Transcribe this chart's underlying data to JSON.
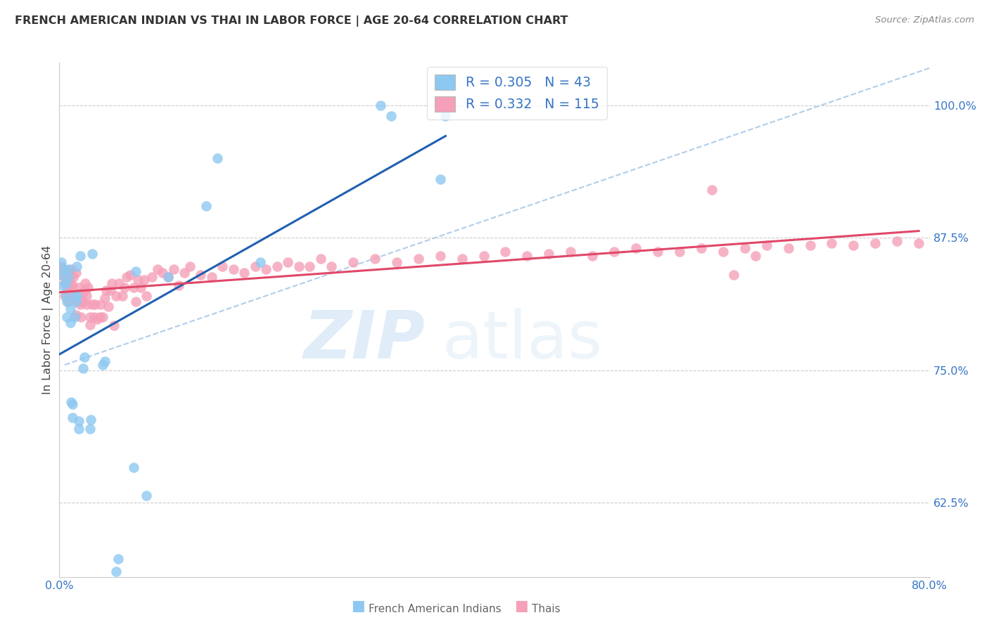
{
  "title": "FRENCH AMERICAN INDIAN VS THAI IN LABOR FORCE | AGE 20-64 CORRELATION CHART",
  "source": "Source: ZipAtlas.com",
  "ylabel": "In Labor Force | Age 20-64",
  "ytick_labels": [
    "100.0%",
    "87.5%",
    "75.0%",
    "62.5%"
  ],
  "ytick_values": [
    1.0,
    0.875,
    0.75,
    0.625
  ],
  "xlim": [
    0.0,
    0.8
  ],
  "ylim": [
    0.555,
    1.04
  ],
  "legend_R_blue": "0.305",
  "legend_N_blue": "43",
  "legend_R_pink": "0.332",
  "legend_N_pink": "115",
  "blue_color": "#8DC8F0",
  "pink_color": "#F5A0B8",
  "blue_line_color": "#2060B0",
  "pink_line_color": "#E04868",
  "dashed_line_color": "#A8C8E8",
  "watermark_zip": "ZIP",
  "watermark_atlas": "atlas",
  "blue_points_x": [
    0.001,
    0.002,
    0.003,
    0.004,
    0.006,
    0.006,
    0.007,
    0.007,
    0.008,
    0.008,
    0.01,
    0.01,
    0.011,
    0.012,
    0.012,
    0.014,
    0.015,
    0.015,
    0.016,
    0.016,
    0.018,
    0.018,
    0.019,
    0.022,
    0.023,
    0.028,
    0.029,
    0.03,
    0.04,
    0.042,
    0.052,
    0.054,
    0.068,
    0.07,
    0.08,
    0.1,
    0.135,
    0.145,
    0.185,
    0.295,
    0.305,
    0.35,
    0.355
  ],
  "blue_points_y": [
    0.84,
    0.852,
    0.83,
    0.845,
    0.82,
    0.832,
    0.8,
    0.815,
    0.838,
    0.845,
    0.795,
    0.808,
    0.72,
    0.705,
    0.718,
    0.8,
    0.815,
    0.82,
    0.82,
    0.848,
    0.695,
    0.702,
    0.858,
    0.752,
    0.762,
    0.695,
    0.703,
    0.86,
    0.755,
    0.758,
    0.56,
    0.572,
    0.658,
    0.843,
    0.632,
    0.838,
    0.905,
    0.95,
    0.852,
    1.0,
    0.99,
    0.93,
    0.99
  ],
  "pink_points_x": [
    0.001,
    0.002,
    0.003,
    0.005,
    0.005,
    0.006,
    0.006,
    0.007,
    0.008,
    0.008,
    0.009,
    0.009,
    0.01,
    0.01,
    0.011,
    0.011,
    0.012,
    0.012,
    0.013,
    0.014,
    0.015,
    0.015,
    0.015,
    0.016,
    0.017,
    0.018,
    0.018,
    0.019,
    0.02,
    0.02,
    0.021,
    0.022,
    0.023,
    0.024,
    0.025,
    0.025,
    0.026,
    0.028,
    0.028,
    0.03,
    0.032,
    0.033,
    0.035,
    0.037,
    0.038,
    0.04,
    0.042,
    0.043,
    0.045,
    0.047,
    0.048,
    0.05,
    0.052,
    0.055,
    0.058,
    0.06,
    0.062,
    0.065,
    0.068,
    0.07,
    0.072,
    0.075,
    0.078,
    0.08,
    0.085,
    0.09,
    0.095,
    0.1,
    0.105,
    0.11,
    0.115,
    0.12,
    0.13,
    0.14,
    0.15,
    0.16,
    0.17,
    0.18,
    0.19,
    0.2,
    0.21,
    0.22,
    0.23,
    0.24,
    0.25,
    0.27,
    0.29,
    0.31,
    0.33,
    0.35,
    0.37,
    0.39,
    0.41,
    0.43,
    0.45,
    0.47,
    0.49,
    0.51,
    0.53,
    0.55,
    0.57,
    0.59,
    0.61,
    0.63,
    0.65,
    0.67,
    0.69,
    0.71,
    0.73,
    0.75,
    0.77,
    0.79,
    0.6,
    0.62,
    0.64
  ],
  "pink_points_y": [
    0.84,
    0.848,
    0.843,
    0.82,
    0.832,
    0.838,
    0.844,
    0.825,
    0.815,
    0.828,
    0.82,
    0.835,
    0.822,
    0.832,
    0.84,
    0.845,
    0.82,
    0.83,
    0.838,
    0.82,
    0.802,
    0.818,
    0.842,
    0.815,
    0.822,
    0.818,
    0.828,
    0.812,
    0.8,
    0.815,
    0.822,
    0.815,
    0.825,
    0.832,
    0.812,
    0.82,
    0.828,
    0.793,
    0.8,
    0.812,
    0.8,
    0.812,
    0.798,
    0.8,
    0.812,
    0.8,
    0.818,
    0.825,
    0.81,
    0.825,
    0.832,
    0.792,
    0.82,
    0.832,
    0.82,
    0.828,
    0.838,
    0.84,
    0.828,
    0.815,
    0.835,
    0.828,
    0.835,
    0.82,
    0.838,
    0.845,
    0.842,
    0.838,
    0.845,
    0.83,
    0.842,
    0.848,
    0.84,
    0.838,
    0.848,
    0.845,
    0.842,
    0.848,
    0.845,
    0.848,
    0.852,
    0.848,
    0.848,
    0.855,
    0.848,
    0.852,
    0.855,
    0.852,
    0.855,
    0.858,
    0.855,
    0.858,
    0.862,
    0.858,
    0.86,
    0.862,
    0.858,
    0.862,
    0.865,
    0.862,
    0.862,
    0.865,
    0.862,
    0.865,
    0.868,
    0.865,
    0.868,
    0.87,
    0.868,
    0.87,
    0.872,
    0.87,
    0.92,
    0.84,
    0.858
  ]
}
